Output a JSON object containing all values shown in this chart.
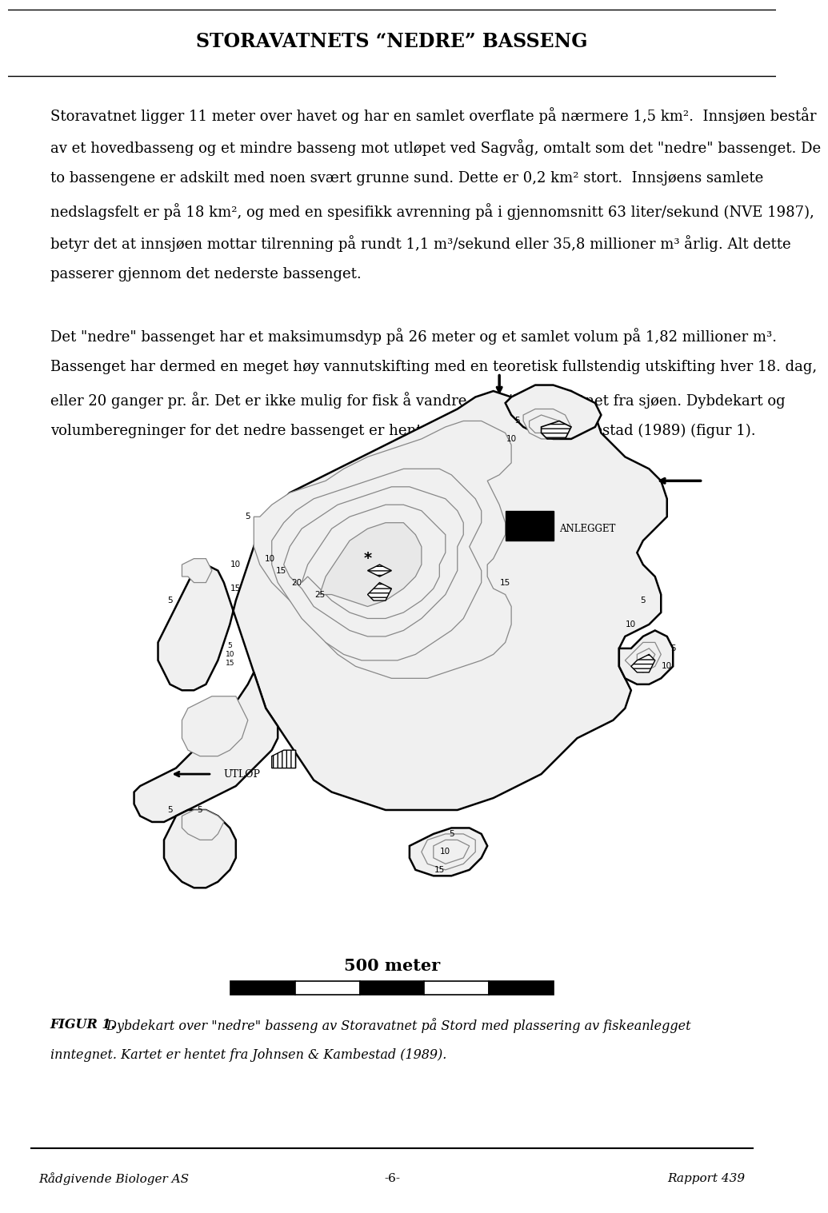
{
  "title": "STORAVATNETS “NEDRE” BASSENG",
  "title_fontsize": 17,
  "body_fontsize": 13.0,
  "page_background": "#ffffff",
  "header_bg": "#e8e8e8",
  "paragraph1_lines": [
    "Storavatnet ligger 11 meter over havet og har en samlet overflate på nærmere 1,5 km².  Innsjøen består",
    "av et hovedbasseng og et mindre basseng mot utløpet ved Sagvåg, omtalt som det \"nedre\" bassenget. De",
    "to bassengene er adskilt med noen svært grunne sund. Dette er 0,2 km² stort.  Innsjøens samlete",
    "nedslagsfelt er på 18 km², og med en spesifikk avrenning på i gjennomsnitt 63 liter/sekund (NVE 1987),",
    "betyr det at innsjøen mottar tilrenning på rundt 1,1 m³/sekund eller 35,8 millioner m³ årlig. Alt dette",
    "passerer gjennom det nederste bassenget."
  ],
  "paragraph2_lines": [
    "Det \"nedre\" bassenget har et maksimumsdyp på 26 meter og et samlet volum på 1,82 millioner m³.",
    "Bassenget har dermed en meget høy vannutskifting med en teoretisk fullstendig utskifting hver 18. dag,",
    "eller 20 ganger pr. år. Det er ikke mulig for fisk å vandre opp til Storavatnet fra sjøen. Dybdekart og",
    "volumberegninger for det nedre bassenget er hentet fra Johnsen og Kambestad (1989) (figur 1)."
  ],
  "figure_caption_bold": "FIGUR 1.",
  "figure_caption_italic": " Dybdekart over \"nedre\" basseng av Storavatnet på Stord med plassering av fiskeanlegget",
  "figure_caption_italic2": "inntegnet. Kartet er hentet fra Johnsen & Kambestad (1989).",
  "footer_left": "Rådgivende Biologer AS",
  "footer_center": "-6-",
  "footer_right": "Rapport 439",
  "scale_text": "500 meter",
  "contour_color": "#888888",
  "lake_fill": "#f0f0f0",
  "deep_fill": "#d8d8d8"
}
